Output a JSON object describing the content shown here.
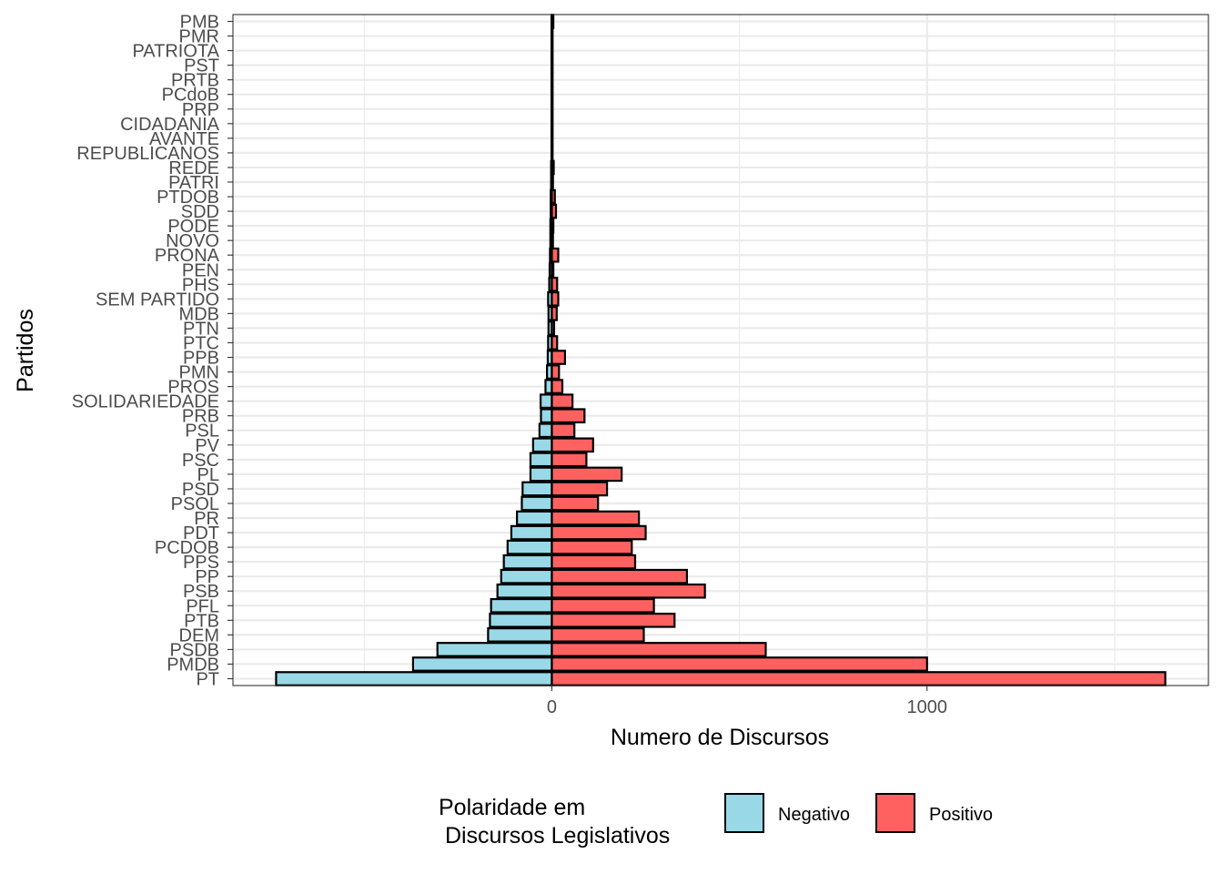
{
  "chart_data": {
    "type": "bar",
    "orientation": "horizontal",
    "layout": "diverging",
    "categories": [
      "PT",
      "PMDB",
      "PSDB",
      "DEM",
      "PTB",
      "PFL",
      "PSB",
      "PP",
      "PPS",
      "PCDOB",
      "PDT",
      "PR",
      "PSOL",
      "PSD",
      "PL",
      "PSC",
      "PV",
      "PSL",
      "PRB",
      "SOLIDARIEDADE",
      "PROS",
      "PMN",
      "PPB",
      "PTC",
      "PTN",
      "MDB",
      "SEM PARTIDO",
      "PHS",
      "PEN",
      "PRONA",
      "NOVO",
      "PODE",
      "SDD",
      "PTDOB",
      "PATRI",
      "REDE",
      "REPUBLICANOS",
      "AVANTE",
      "CIDADANIA",
      "PRP",
      "PCdoB",
      "PRTB",
      "PST",
      "PATRIOTA",
      "PMR",
      "PMB"
    ],
    "series": [
      {
        "name": "Negativo",
        "color": "#99d8e7",
        "values": [
          -735,
          -370,
          -305,
          -170,
          -165,
          -162,
          -145,
          -135,
          -128,
          -118,
          -108,
          -93,
          -80,
          -78,
          -57,
          -57,
          -50,
          -33,
          -29,
          -30,
          -17,
          -13,
          -11,
          -10,
          -9,
          -9,
          -10,
          -7,
          -6,
          -5,
          -4,
          -4,
          -3,
          -3,
          -2,
          -2,
          -1,
          -1,
          -1,
          -1,
          -1,
          -1,
          -1,
          -1,
          -1,
          -1
        ]
      },
      {
        "name": "Positivo",
        "color": "#ff6161",
        "values": [
          1635,
          1000,
          570,
          245,
          327,
          272,
          408,
          360,
          222,
          213,
          250,
          232,
          123,
          147,
          186,
          92,
          110,
          60,
          87,
          55,
          28,
          19,
          35,
          14,
          6,
          13,
          17,
          14,
          4,
          17,
          3,
          4,
          11,
          8,
          3,
          5,
          2,
          2,
          2,
          2,
          2,
          2,
          2,
          2,
          2,
          4
        ]
      }
    ],
    "title": "",
    "xlabel": "Numero de Discursos",
    "ylabel": "Partidos",
    "xlim": [
      -850,
      1750
    ],
    "xticks": [
      0,
      1000
    ],
    "xtick_labels": [
      "0",
      "1000"
    ],
    "grid": true,
    "legend": {
      "title_lines": [
        "Polaridade em",
        " Discursos Legislativos"
      ],
      "position": "bottom",
      "entries": [
        "Negativo",
        "Positivo"
      ]
    }
  }
}
